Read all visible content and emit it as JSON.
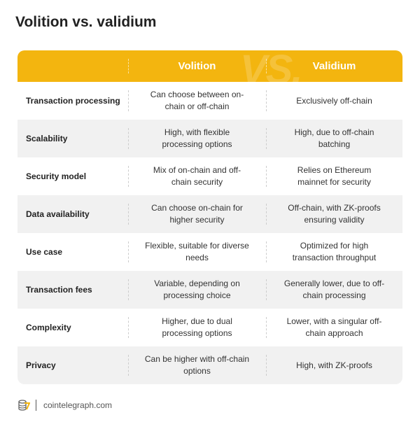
{
  "title": "Volition vs. validium",
  "header": {
    "vs": "VS.",
    "col1": "Volition",
    "col2": "Validium"
  },
  "rows": [
    {
      "label": "Transaction processing",
      "volition": "Can choose between on-chain or off-chain",
      "validium": "Exclusively off-chain"
    },
    {
      "label": "Scalability",
      "volition": "High, with flexible processing options",
      "validium": "High, due to off-chain batching"
    },
    {
      "label": "Security model",
      "volition": "Mix of on-chain and off-chain security",
      "validium": "Relies on Ethereum mainnet for security"
    },
    {
      "label": "Data availability",
      "volition": "Can choose on-chain for higher security",
      "validium": "Off-chain, with ZK-proofs ensuring validity"
    },
    {
      "label": "Use case",
      "volition": "Flexible, suitable for diverse needs",
      "validium": "Optimized for high transaction throughput"
    },
    {
      "label": "Transaction fees",
      "volition": "Variable, depending on processing choice",
      "validium": "Generally lower, due to off-chain processing"
    },
    {
      "label": "Complexity",
      "volition": "Higher, due to dual processing options",
      "validium": "Lower, with a singular off-chain approach"
    },
    {
      "label": "Privacy",
      "volition": "Can be higher with off-chain options",
      "validium": "High, with ZK-proofs"
    }
  ],
  "footer": {
    "site": "cointelegraph.com",
    "logo_icon": "cointelegraph-logo"
  },
  "colors": {
    "accent": "#f3b50f",
    "row_alt": "#f1f1f1"
  }
}
